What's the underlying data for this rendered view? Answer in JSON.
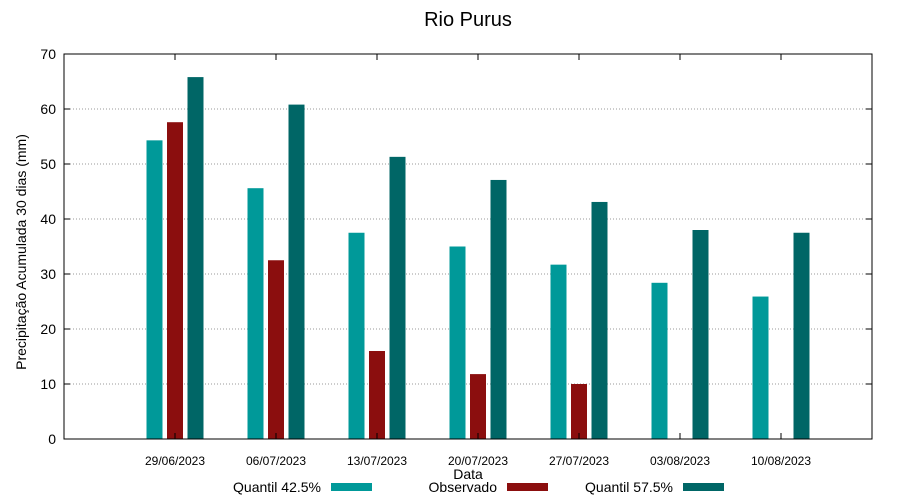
{
  "chart_data": {
    "type": "bar",
    "title": "Rio Purus",
    "xlabel": "Data",
    "ylabel": "Precipitação Acumulada 30 dias (mm)",
    "ylim": [
      0,
      70
    ],
    "yticks": [
      0,
      10,
      20,
      30,
      40,
      50,
      60,
      70
    ],
    "grid": true,
    "legend_position": "bottom",
    "categories": [
      "29/06/2023",
      "06/07/2023",
      "13/07/2023",
      "20/07/2023",
      "27/07/2023",
      "03/08/2023",
      "10/08/2023"
    ],
    "series": [
      {
        "name": "Quantil 42.5%",
        "color": "#009999",
        "values": [
          54.3,
          45.6,
          37.5,
          35.0,
          31.7,
          28.4,
          25.9
        ]
      },
      {
        "name": "Observado",
        "color": "#8b0e0e",
        "values": [
          57.6,
          32.5,
          16.0,
          11.8,
          10.0,
          null,
          null
        ]
      },
      {
        "name": "Quantil 57.5%",
        "color": "#006666",
        "values": [
          65.8,
          60.8,
          51.3,
          47.1,
          43.1,
          38.0,
          37.5
        ]
      }
    ]
  }
}
